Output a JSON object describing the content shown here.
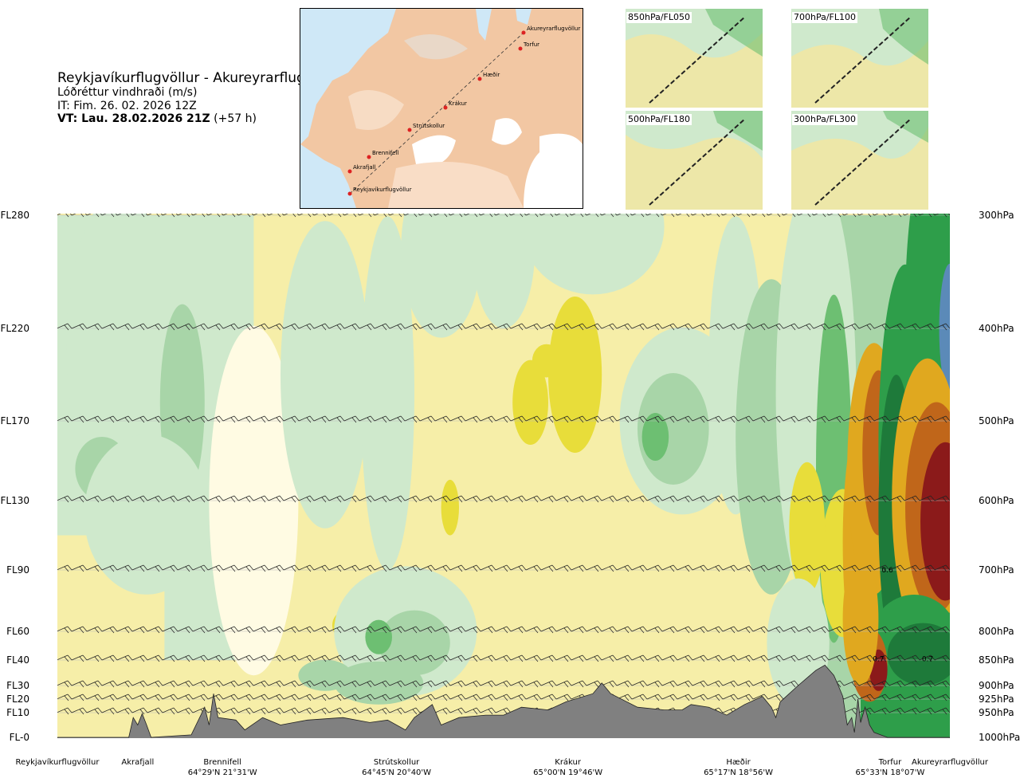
{
  "header": {
    "title": "Reykjavíkurflugvöllur - Akureyrarflugvöllur",
    "variable": "Lóðréttur vindhraði (m/s)",
    "issue_time": "IT: Fim. 26. 02. 2026 12Z",
    "valid_time_bold": "VT: Lau. 28.02.2026 21Z",
    "valid_time_offset": "(+57 h)"
  },
  "map": {
    "route_points": [
      "Akureyrarflugvöllur",
      "Torfur",
      "Hæðir",
      "Krákur",
      "Strútskollur",
      "Brennifell",
      "Akrafjall",
      "Reykjavíkurflugvöllur"
    ]
  },
  "thumbnails": [
    {
      "label": "850hPa/FL050"
    },
    {
      "label": "700hPa/FL100"
    },
    {
      "label": "500hPa/FL180"
    },
    {
      "label": "300hPa/FL300"
    }
  ],
  "chart_data": {
    "type": "heatmap",
    "xaxis_labels": [
      {
        "name": "Reykjavíkurflugvöllur",
        "coord": "",
        "frac": 0.0
      },
      {
        "name": "Akrafjall",
        "coord": "",
        "frac": 0.09
      },
      {
        "name": "Brennifell",
        "coord": "64°29'N 21°31'W",
        "frac": 0.185
      },
      {
        "name": "Strútskollur",
        "coord": "64°45'N 20°40'W",
        "frac": 0.38
      },
      {
        "name": "Krákur",
        "coord": "65°00'N 19°46'W",
        "frac": 0.572
      },
      {
        "name": "Hæðir",
        "coord": "65°17'N 18°56'W",
        "frac": 0.763
      },
      {
        "name": "Torfur",
        "coord": "65°33'N 18°07'W",
        "frac": 0.933
      },
      {
        "name": "Akureyrarflugvöllur",
        "coord": "",
        "frac": 1.0
      }
    ],
    "levels": [
      {
        "fl": "FL280",
        "hpa": "300hPa",
        "value": 300
      },
      {
        "fl": "FL220",
        "hpa": "400hPa",
        "value": 400
      },
      {
        "fl": "FL170",
        "hpa": "500hPa",
        "value": 500
      },
      {
        "fl": "FL130",
        "hpa": "600hPa",
        "value": 600
      },
      {
        "fl": "FL90",
        "hpa": "700hPa",
        "value": 700
      },
      {
        "fl": "FL60",
        "hpa": "800hPa",
        "value": 800
      },
      {
        "fl": "FL40",
        "hpa": "850hPa",
        "value": 850
      },
      {
        "fl": "FL30",
        "hpa": "900hPa",
        "value": 900
      },
      {
        "fl": "FL20",
        "hpa": "925hPa",
        "value": 925
      },
      {
        "fl": "FL10",
        "hpa": "950hPa",
        "value": 950
      },
      {
        "fl": "FL-0",
        "hpa": "1000hPa",
        "value": 1000
      }
    ],
    "ylim": [
      300,
      1000
    ],
    "annotations": [
      {
        "text": "0.6",
        "x": 0.93,
        "p": 700
      },
      {
        "text": "0.7",
        "x": 0.92,
        "p": 848
      },
      {
        "text": "0.7",
        "x": 0.975,
        "p": 848
      }
    ],
    "colors": {
      "strong_down": "#1e7a3a",
      "down": "#2e9e4a",
      "mod_down": "#6dbf72",
      "weak_down": "#a8d5a8",
      "slight_down": "#cfe9cc",
      "neutral": "#fffbe3",
      "slight_up": "#f6eea8",
      "weak_up": "#e8dd3a",
      "mod_up": "#e0a81f",
      "up": "#c0661a",
      "strong_up": "#8b1a1a",
      "terrain": "#808080"
    }
  }
}
